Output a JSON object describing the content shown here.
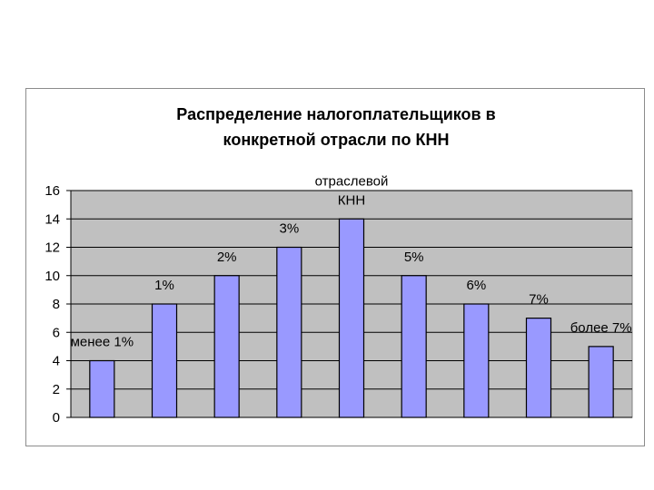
{
  "chart_data": {
    "type": "bar",
    "title": [
      "Распределение налогоплательщиков в",
      "конкретной отрасли по КНН"
    ],
    "categories": [
      "менее 1%",
      "1%",
      "2%",
      "3%",
      "отраслевой КНН",
      "5%",
      "6%",
      "7%",
      "более 7%"
    ],
    "values": [
      4,
      8,
      10,
      12,
      14,
      10,
      8,
      7,
      5
    ],
    "data_labels": [
      "менее 1%",
      "1%",
      "2%",
      "3%",
      [
        "отраслевой",
        "КНН"
      ],
      "5%",
      "6%",
      "7%",
      "более 7%"
    ],
    "ylim": [
      0,
      16
    ],
    "yticks": [
      "0",
      "2",
      "4",
      "6",
      "8",
      "10",
      "12",
      "14",
      "16"
    ],
    "grid": true,
    "colors": {
      "bar": "#9999ff",
      "plot_bg": "#c0c0c0",
      "bar_edge": "#000000",
      "grid": "#000000"
    }
  }
}
